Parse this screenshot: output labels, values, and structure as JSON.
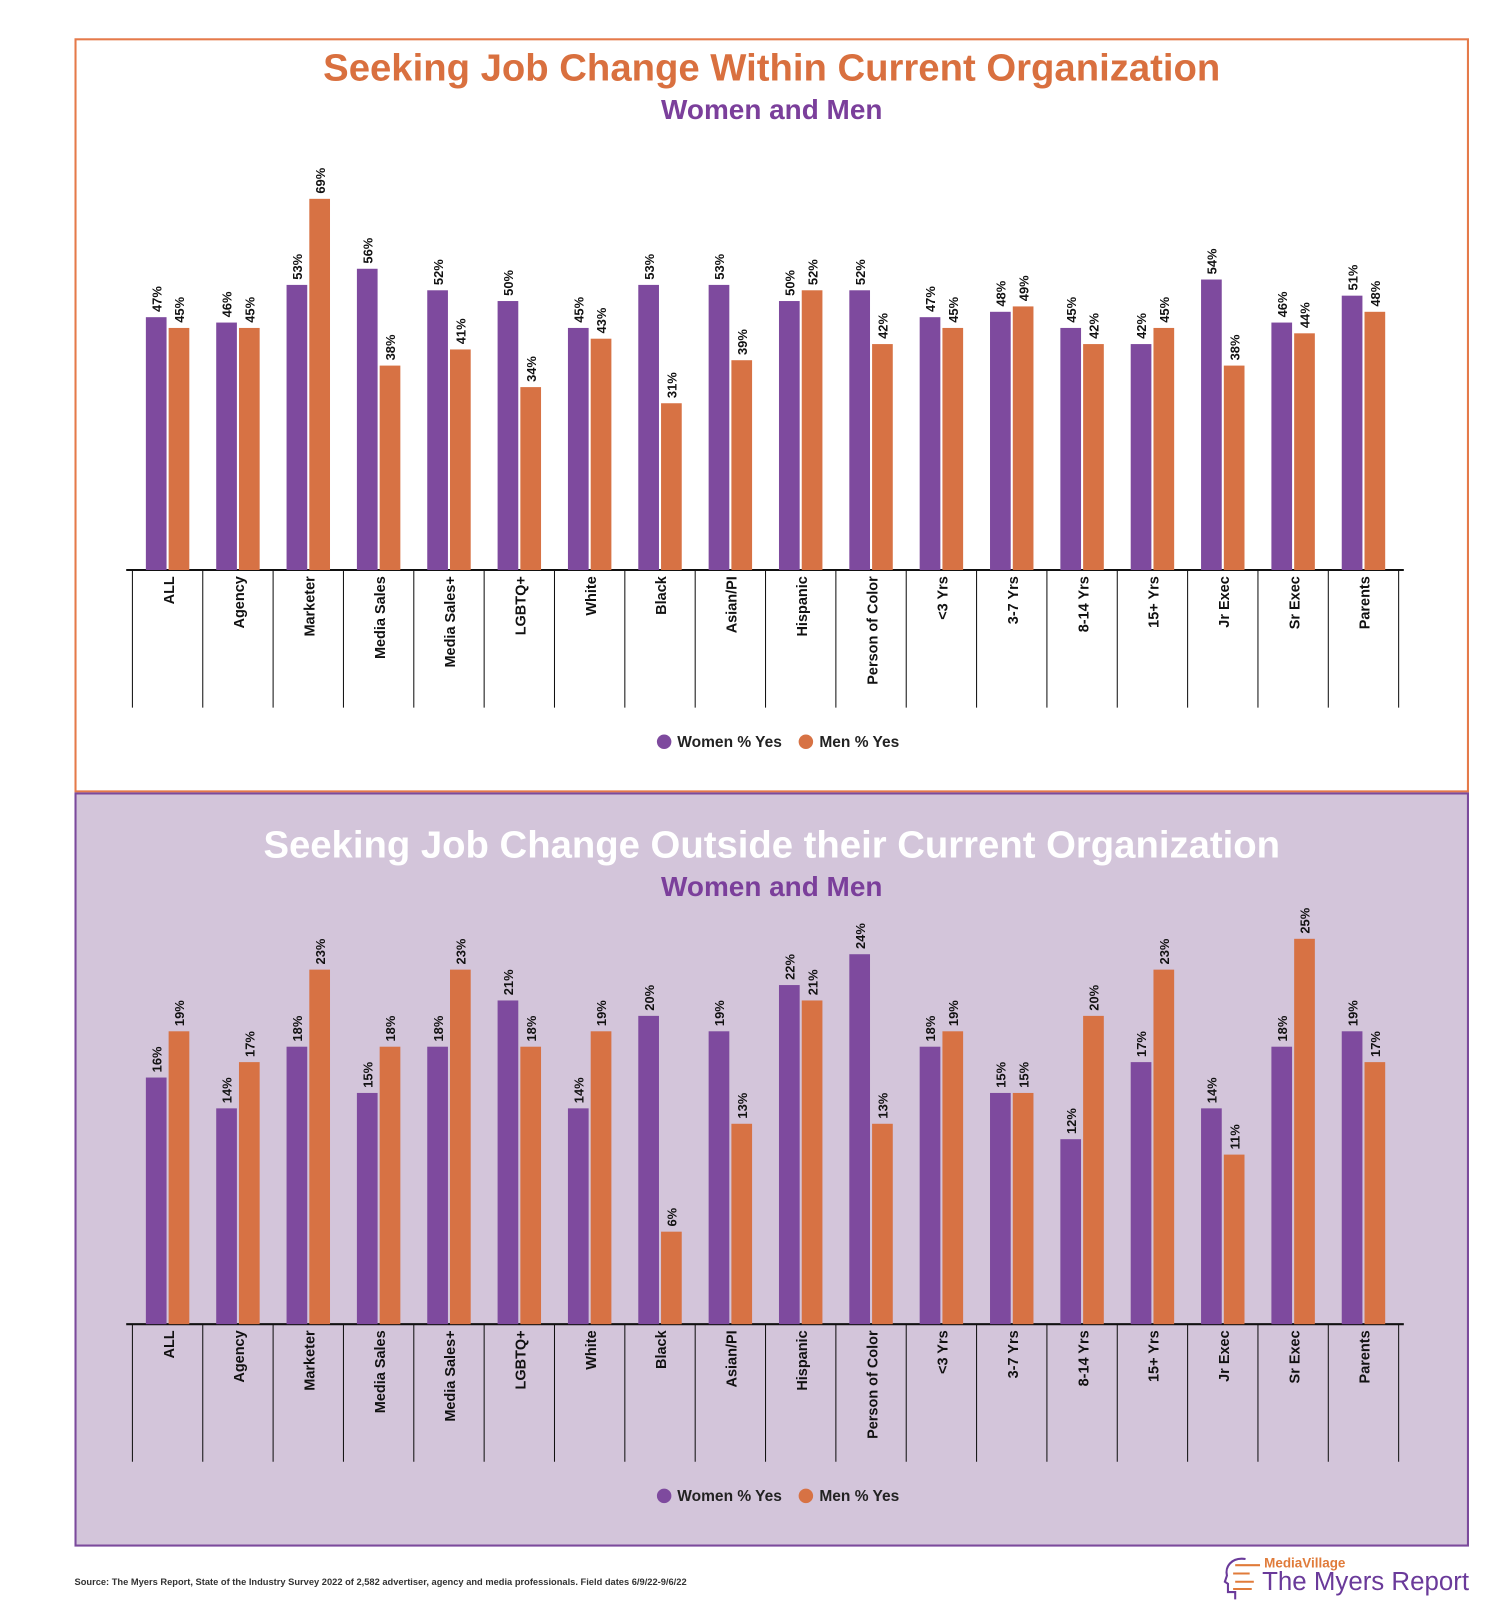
{
  "colors": {
    "women": "#7e4a9e",
    "men": "#d77244",
    "top_title": "#d9703f",
    "bottom_title": "#ffffff",
    "subtitle": "#7b3f9b"
  },
  "chart_data": [
    {
      "type": "bar",
      "title": "Seeking Job Change Within Current Organization",
      "subtitle": "Women and Men",
      "categories": [
        "ALL",
        "Agency",
        "Marketer",
        "Media Sales",
        "Media Sales+",
        "LGBTQ+",
        "White",
        "Black",
        "Asian/PI",
        "Hispanic",
        "Person of Color",
        "<3 Yrs",
        "3-7 Yrs",
        "8-14 Yrs",
        "15+ Yrs",
        "Jr Exec",
        "Sr Exec",
        "Parents"
      ],
      "series": [
        {
          "name": "Women % Yes",
          "values": [
            47,
            46,
            53,
            56,
            52,
            50,
            45,
            53,
            53,
            50,
            52,
            47,
            48,
            45,
            42,
            54,
            46,
            51
          ]
        },
        {
          "name": "Men % Yes",
          "values": [
            45,
            45,
            69,
            38,
            41,
            34,
            43,
            31,
            39,
            52,
            42,
            45,
            49,
            42,
            45,
            38,
            44,
            48
          ]
        }
      ],
      "value_format": "{v}%",
      "ylim": [
        0,
        70
      ],
      "legend": "bottom-center"
    },
    {
      "type": "bar",
      "title": "Seeking Job Change Outside their Current Organization",
      "subtitle": "Women and Men",
      "categories": [
        "ALL",
        "Agency",
        "Marketer",
        "Media Sales",
        "Media Sales+",
        "LGBTQ+",
        "White",
        "Black",
        "Asian/PI",
        "Hispanic",
        "Person of Color",
        "<3 Yrs",
        "3-7 Yrs",
        "8-14 Yrs",
        "15+ Yrs",
        "Jr Exec",
        "Sr Exec",
        "Parents"
      ],
      "series": [
        {
          "name": "Women % Yes",
          "values": [
            16,
            14,
            18,
            15,
            18,
            21,
            14,
            20,
            19,
            22,
            24,
            18,
            15,
            12,
            17,
            14,
            18,
            19
          ]
        },
        {
          "name": "Men % Yes",
          "values": [
            19,
            17,
            23,
            18,
            23,
            18,
            19,
            6,
            13,
            21,
            13,
            19,
            15,
            20,
            23,
            11,
            25,
            17
          ]
        }
      ],
      "value_format": "{v}%",
      "ylim": [
        0,
        25
      ],
      "legend": "bottom-center"
    }
  ],
  "footer": {
    "source": "Source:  The Myers Report, State of the Industry Survey 2022 of 2,582 advertiser, agency and media professionals.  Field dates 6/9/22-9/6/22",
    "logo_top": "MediaVillage",
    "logo_main": "The Myers Report"
  }
}
